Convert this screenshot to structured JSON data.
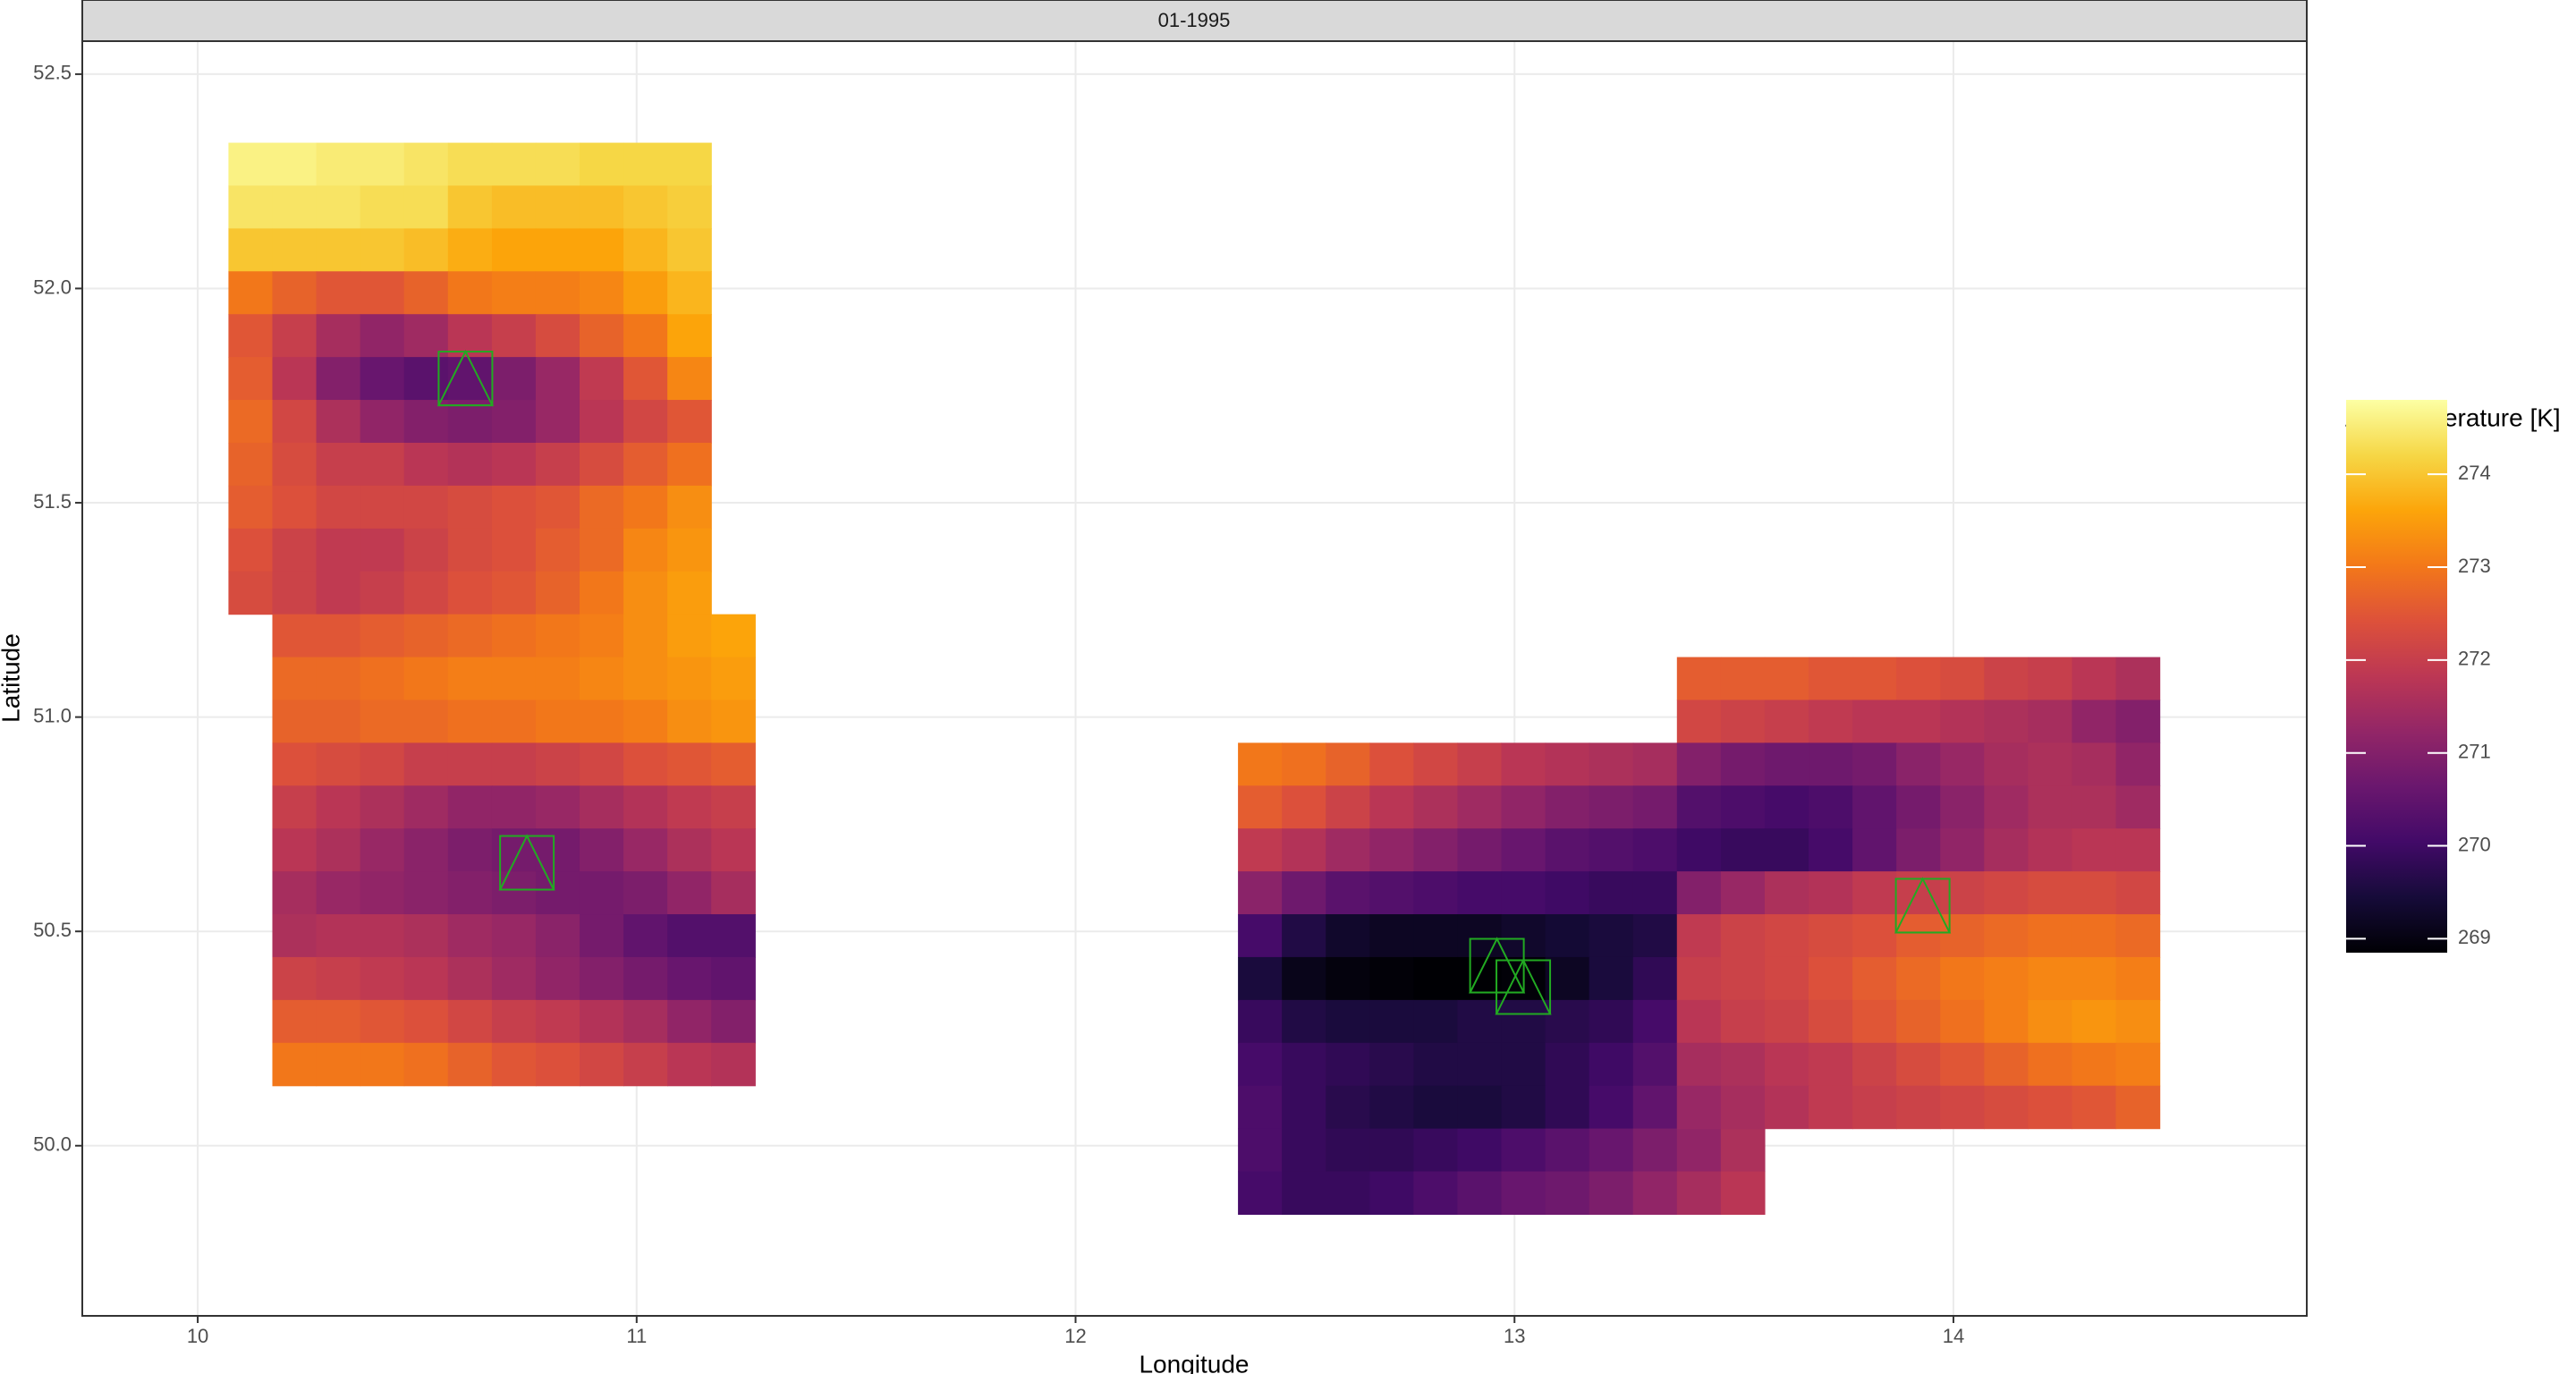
{
  "chart_data": {
    "type": "raster",
    "title": "01-1995",
    "xlabel": "Longitude",
    "ylabel": "Latitude",
    "xlim": [
      9.737,
      14.805
    ],
    "ylim": [
      49.603,
      52.577
    ],
    "xticks": [
      10,
      11,
      12,
      13,
      14
    ],
    "yticks": [
      {
        "value": 50,
        "label": "50.0"
      },
      {
        "value": 50.5,
        "label": "50.5"
      },
      {
        "value": 51,
        "label": "51.0"
      },
      {
        "value": 51.5,
        "label": "51.5"
      },
      {
        "value": 52,
        "label": "52.0"
      },
      {
        "value": 52.5,
        "label": "52.5"
      }
    ],
    "grid": true,
    "colormap": "inferno",
    "legend_title": "Air Temperature [K]",
    "clim": [
      268.85,
      274.8
    ],
    "cticks": [
      269,
      270,
      271,
      272,
      273,
      274
    ],
    "tiles": [
      {
        "x": [
          10.12,
          10.22,
          10.32,
          10.42,
          10.52,
          10.62,
          10.72,
          10.82,
          10.92,
          11.02,
          11.12
        ],
        "y": [
          52.29,
          52.19,
          52.09,
          51.99,
          51.89,
          51.79,
          51.69,
          51.59,
          51.49,
          51.39,
          51.29
        ],
        "values": [
          [
            274.6,
            274.6,
            274.5,
            274.5,
            274.4,
            274.3,
            274.3,
            274.3,
            274.2,
            274.2,
            274.2
          ],
          [
            274.4,
            274.4,
            274.4,
            274.3,
            274.3,
            274.0,
            273.9,
            273.9,
            273.9,
            274.0,
            274.1
          ],
          [
            274.0,
            274.0,
            274.0,
            274.0,
            273.9,
            273.7,
            273.6,
            273.6,
            273.6,
            273.8,
            274.0
          ],
          [
            273.0,
            272.7,
            272.5,
            272.5,
            272.7,
            273.0,
            273.1,
            273.1,
            273.2,
            273.5,
            273.8
          ],
          [
            272.5,
            272.0,
            271.5,
            271.2,
            271.4,
            271.8,
            272.0,
            272.3,
            272.7,
            273.0,
            273.6
          ],
          [
            272.6,
            271.8,
            271.0,
            270.6,
            270.4,
            270.5,
            270.9,
            271.3,
            271.9,
            272.5,
            273.2
          ],
          [
            272.8,
            272.2,
            271.6,
            271.2,
            271.0,
            270.9,
            271.0,
            271.3,
            271.8,
            272.2,
            272.5
          ],
          [
            272.7,
            272.3,
            272.0,
            272.0,
            271.8,
            271.7,
            271.8,
            272.0,
            272.3,
            272.6,
            272.9
          ],
          [
            272.6,
            272.4,
            272.2,
            272.2,
            272.2,
            272.3,
            272.4,
            272.5,
            272.8,
            273.0,
            273.3
          ],
          [
            272.4,
            272.1,
            271.9,
            271.9,
            272.1,
            272.3,
            272.4,
            272.6,
            272.8,
            273.2,
            273.4
          ],
          [
            272.3,
            272.1,
            271.9,
            272.0,
            272.2,
            272.4,
            272.5,
            272.7,
            273.0,
            273.3,
            273.5
          ]
        ]
      },
      {
        "x": [
          10.22,
          10.32,
          10.42,
          10.52,
          10.62,
          10.72,
          10.82,
          10.92,
          11.02,
          11.12,
          11.22
        ],
        "y": [
          51.19,
          51.09,
          50.99,
          50.89,
          50.79,
          50.69,
          50.59,
          50.49,
          50.39,
          50.29,
          50.19
        ],
        "values": [
          [
            272.5,
            272.5,
            272.6,
            272.7,
            272.8,
            272.9,
            273.0,
            273.1,
            273.3,
            273.5,
            273.6
          ],
          [
            272.8,
            272.8,
            272.9,
            273.0,
            273.1,
            273.1,
            273.1,
            273.2,
            273.3,
            273.4,
            273.5
          ],
          [
            272.7,
            272.7,
            272.8,
            272.8,
            272.9,
            272.9,
            273.0,
            273.0,
            273.1,
            273.3,
            273.4
          ],
          [
            272.4,
            272.3,
            272.2,
            272.0,
            272.0,
            272.0,
            272.1,
            272.2,
            272.4,
            272.5,
            272.6
          ],
          [
            272.0,
            271.8,
            271.6,
            271.4,
            271.2,
            271.2,
            271.3,
            271.5,
            271.7,
            271.9,
            272.0
          ],
          [
            271.8,
            271.6,
            271.3,
            271.1,
            270.9,
            270.8,
            270.8,
            271.0,
            271.3,
            271.6,
            271.8
          ],
          [
            271.5,
            271.3,
            271.2,
            271.1,
            271.0,
            270.9,
            270.8,
            270.8,
            270.9,
            271.2,
            271.5
          ],
          [
            271.6,
            271.7,
            271.7,
            271.6,
            271.4,
            271.3,
            271.1,
            270.8,
            270.5,
            270.3,
            270.3
          ],
          [
            272.1,
            272.0,
            271.9,
            271.8,
            271.6,
            271.4,
            271.2,
            271.0,
            270.8,
            270.6,
            270.5
          ],
          [
            272.6,
            272.6,
            272.5,
            272.4,
            272.2,
            272.0,
            271.9,
            271.7,
            271.5,
            271.2,
            271.0
          ],
          [
            273.0,
            273.0,
            273.0,
            272.9,
            272.7,
            272.5,
            272.4,
            272.2,
            272.0,
            271.8,
            271.7
          ]
        ]
      },
      {
        "x": [
          12.42,
          12.52,
          12.62,
          12.72,
          12.82,
          12.92,
          13.02,
          13.12,
          13.22,
          13.32,
          13.42,
          13.52
        ],
        "y": [
          50.89,
          50.79,
          50.69,
          50.59,
          50.49,
          50.39,
          50.29,
          50.19,
          50.09,
          49.99,
          49.89
        ],
        "values": [
          [
            273.0,
            272.9,
            272.7,
            272.4,
            272.2,
            272.0,
            271.8,
            271.7,
            271.6,
            271.5,
            271.4,
            271.3
          ],
          [
            272.6,
            272.4,
            272.1,
            271.8,
            271.6,
            271.4,
            271.2,
            271.0,
            270.9,
            270.8,
            270.7,
            270.6
          ],
          [
            271.9,
            271.7,
            271.4,
            271.2,
            271.0,
            270.8,
            270.6,
            270.4,
            270.3,
            270.2,
            270.1,
            270.1
          ],
          [
            271.1,
            270.7,
            270.4,
            270.3,
            270.2,
            270.1,
            270.1,
            270.0,
            269.9,
            269.9,
            269.9,
            270.0
          ],
          [
            270.1,
            269.6,
            269.3,
            269.2,
            269.2,
            269.2,
            269.3,
            269.4,
            269.5,
            269.6,
            269.9,
            270.4
          ],
          [
            269.5,
            269.1,
            268.95,
            268.9,
            268.85,
            268.85,
            268.9,
            269.2,
            269.5,
            269.8,
            270.2,
            270.7
          ],
          [
            269.9,
            269.6,
            269.5,
            269.5,
            269.5,
            269.6,
            269.6,
            269.7,
            269.8,
            270.1,
            270.5,
            271.0
          ],
          [
            270.1,
            269.9,
            269.8,
            269.7,
            269.6,
            269.6,
            269.6,
            269.8,
            270.0,
            270.3,
            270.7,
            271.2
          ],
          [
            270.2,
            269.9,
            269.7,
            269.6,
            269.5,
            269.5,
            269.6,
            269.8,
            270.1,
            270.5,
            270.9,
            271.4
          ],
          [
            270.2,
            269.9,
            269.8,
            269.8,
            269.9,
            270.0,
            270.2,
            270.4,
            270.6,
            270.9,
            271.2,
            271.6
          ],
          [
            270.1,
            269.9,
            269.9,
            270.0,
            270.2,
            270.4,
            270.6,
            270.7,
            270.9,
            271.2,
            271.5,
            271.8
          ]
        ]
      },
      {
        "x": [
          13.42,
          13.52,
          13.62,
          13.72,
          13.82,
          13.92,
          14.02,
          14.12,
          14.22,
          14.32,
          14.42
        ],
        "y": [
          51.09,
          50.99,
          50.89,
          50.79,
          50.69,
          50.59,
          50.49,
          50.39,
          50.29,
          50.19,
          50.09
        ],
        "values": [
          [
            272.6,
            272.6,
            272.6,
            272.5,
            272.5,
            272.4,
            272.3,
            272.1,
            272.0,
            271.8,
            271.6
          ],
          [
            272.2,
            272.1,
            272.0,
            271.9,
            271.8,
            271.8,
            271.7,
            271.6,
            271.5,
            271.2,
            271.0
          ],
          [
            271.0,
            270.8,
            270.7,
            270.7,
            270.8,
            271.1,
            271.3,
            271.5,
            271.6,
            271.5,
            271.2
          ],
          [
            270.3,
            270.2,
            270.1,
            270.2,
            270.5,
            270.8,
            271.1,
            271.4,
            271.6,
            271.6,
            271.4
          ],
          [
            270.0,
            269.9,
            269.9,
            270.1,
            270.5,
            270.9,
            271.2,
            271.5,
            271.7,
            271.8,
            271.8
          ],
          [
            271.0,
            271.3,
            271.6,
            271.7,
            271.9,
            272.0,
            272.1,
            272.2,
            272.3,
            272.3,
            272.2
          ],
          [
            271.9,
            272.1,
            272.2,
            272.3,
            272.4,
            272.6,
            272.7,
            272.8,
            272.9,
            272.9,
            272.8
          ],
          [
            272.0,
            272.1,
            272.2,
            272.4,
            272.6,
            272.8,
            273.0,
            273.1,
            273.2,
            273.2,
            273.1
          ],
          [
            271.8,
            272.0,
            272.1,
            272.3,
            272.5,
            272.7,
            272.9,
            273.1,
            273.3,
            273.4,
            273.3
          ],
          [
            271.5,
            271.6,
            271.8,
            271.9,
            272.1,
            272.3,
            272.5,
            272.7,
            272.9,
            273.0,
            273.1
          ],
          [
            271.3,
            271.5,
            271.7,
            271.9,
            272.0,
            272.1,
            272.2,
            272.3,
            272.4,
            272.5,
            272.7
          ]
        ]
      }
    ],
    "points": {
      "x": [
        10.61,
        10.75,
        12.96,
        13.02,
        13.93
      ],
      "y": [
        51.79,
        50.66,
        50.42,
        50.37,
        50.56
      ],
      "color": "#22aa22"
    }
  }
}
